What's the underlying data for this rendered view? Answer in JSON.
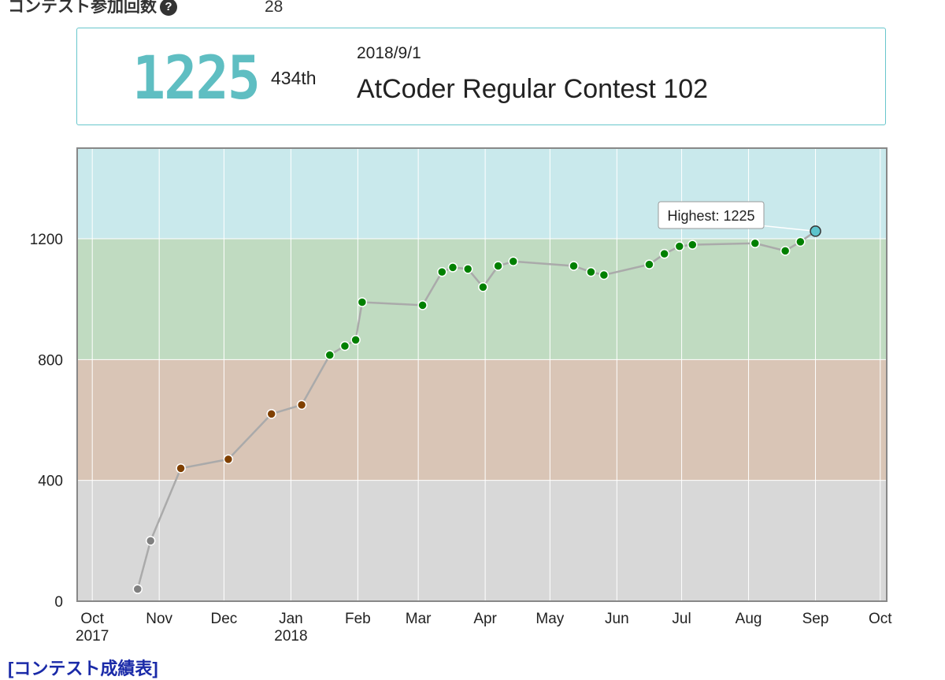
{
  "header": {
    "contest_count_label": "コンテスト参加回数",
    "help_icon_glyph": "?",
    "contest_count_value": "28"
  },
  "status": {
    "rating": "1225",
    "rank": "434th",
    "date": "2018/9/1",
    "contest_name": "AtCoder Regular Contest 102",
    "rating_color": "#5fbec2"
  },
  "links": {
    "results_table": "[コンテスト成績表]"
  },
  "chart_data": {
    "type": "line",
    "title": "",
    "xlabel": "",
    "ylabel": "",
    "ylim": [
      0,
      1500
    ],
    "y_ticks": [
      "0",
      "400",
      "800",
      "1200"
    ],
    "x_ticks": [
      {
        "date": "2017-10-01",
        "lines": [
          "Oct",
          "2017"
        ]
      },
      {
        "date": "2017-11-01",
        "lines": [
          "Nov"
        ]
      },
      {
        "date": "2017-12-01",
        "lines": [
          "Dec"
        ]
      },
      {
        "date": "2018-01-01",
        "lines": [
          "Jan",
          "2018"
        ]
      },
      {
        "date": "2018-02-01",
        "lines": [
          "Feb"
        ]
      },
      {
        "date": "2018-03-01",
        "lines": [
          "Mar"
        ]
      },
      {
        "date": "2018-04-01",
        "lines": [
          "Apr"
        ]
      },
      {
        "date": "2018-05-01",
        "lines": [
          "May"
        ]
      },
      {
        "date": "2018-06-01",
        "lines": [
          "Jun"
        ]
      },
      {
        "date": "2018-07-01",
        "lines": [
          "Jul"
        ]
      },
      {
        "date": "2018-08-01",
        "lines": [
          "Aug"
        ]
      },
      {
        "date": "2018-09-01",
        "lines": [
          "Sep"
        ]
      },
      {
        "date": "2018-10-01",
        "lines": [
          "Oct"
        ]
      }
    ],
    "xlim": [
      "2017-09-24",
      "2018-10-04"
    ],
    "bands": [
      {
        "from": 0,
        "to": 400,
        "color": "#d8d8d8"
      },
      {
        "from": 400,
        "to": 800,
        "color": "#d9c5b6"
      },
      {
        "from": 800,
        "to": 1200,
        "color": "#c0dbc1"
      },
      {
        "from": 1200,
        "to": 1500,
        "color": "#c9e9ec"
      }
    ],
    "grid": true,
    "series": [
      {
        "points": [
          {
            "x": "2017-10-22",
            "y": 40
          },
          {
            "x": "2017-10-28",
            "y": 200
          },
          {
            "x": "2017-11-11",
            "y": 440
          },
          {
            "x": "2017-12-03",
            "y": 470
          },
          {
            "x": "2017-12-23",
            "y": 620
          },
          {
            "x": "2018-01-06",
            "y": 650
          },
          {
            "x": "2018-01-19",
            "y": 815
          },
          {
            "x": "2018-01-26",
            "y": 845
          },
          {
            "x": "2018-01-31",
            "y": 865
          },
          {
            "x": "2018-02-03",
            "y": 990
          },
          {
            "x": "2018-03-03",
            "y": 980
          },
          {
            "x": "2018-03-12",
            "y": 1090
          },
          {
            "x": "2018-03-17",
            "y": 1105
          },
          {
            "x": "2018-03-24",
            "y": 1100
          },
          {
            "x": "2018-03-31",
            "y": 1040
          },
          {
            "x": "2018-04-07",
            "y": 1110
          },
          {
            "x": "2018-04-14",
            "y": 1125
          },
          {
            "x": "2018-05-12",
            "y": 1110
          },
          {
            "x": "2018-05-20",
            "y": 1090
          },
          {
            "x": "2018-05-26",
            "y": 1080
          },
          {
            "x": "2018-06-16",
            "y": 1115
          },
          {
            "x": "2018-06-23",
            "y": 1150
          },
          {
            "x": "2018-06-30",
            "y": 1175
          },
          {
            "x": "2018-07-06",
            "y": 1180
          },
          {
            "x": "2018-08-04",
            "y": 1185
          },
          {
            "x": "2018-08-18",
            "y": 1160
          },
          {
            "x": "2018-08-25",
            "y": 1190
          },
          {
            "x": "2018-09-01",
            "y": 1225
          }
        ]
      }
    ],
    "tooltip": {
      "text": "Highest: 1225",
      "x": "2018-09-01",
      "y": 1225
    },
    "colors": {
      "line": "#aaaaaa",
      "grid": "#ffffff",
      "frame": "#888888",
      "gray": "#808080",
      "brown": "#804000",
      "green": "#008000",
      "cyan": "#00c0c0"
    }
  }
}
